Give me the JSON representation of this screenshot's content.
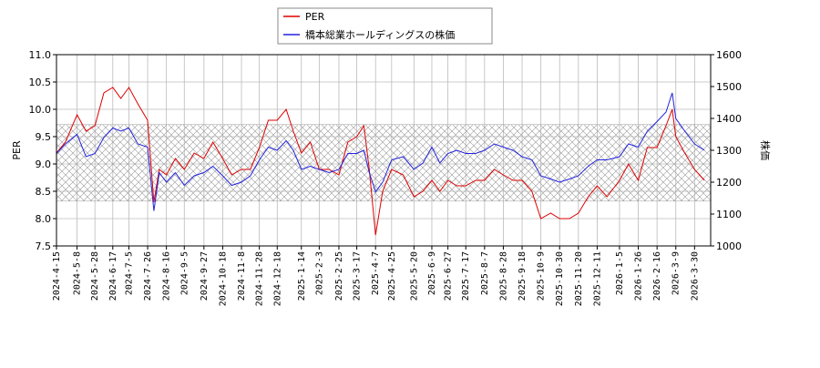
{
  "chart_data": {
    "type": "line",
    "y_label": "PER",
    "y2_label": "株価",
    "x": [
      "2024-4-15",
      "2024-4-25",
      "2024-5-8",
      "2024-5-18",
      "2024-5-28",
      "2024-6-7",
      "2024-6-17",
      "2024-6-26",
      "2024-7-5",
      "2024-7-15",
      "2024-7-26",
      "2024-8-2",
      "2024-8-8",
      "2024-8-16",
      "2024-8-26",
      "2024-9-5",
      "2024-9-16",
      "2024-9-27",
      "2024-10-7",
      "2024-10-18",
      "2024-10-28",
      "2024-11-8",
      "2024-11-18",
      "2024-11-28",
      "2024-12-8",
      "2024-12-18",
      "2024-12-28",
      "2025-1-5",
      "2025-1-14",
      "2025-1-24",
      "2025-2-3",
      "2025-2-14",
      "2025-2-25",
      "2025-3-7",
      "2025-3-17",
      "2025-3-25",
      "2025-3-31",
      "2025-4-7",
      "2025-4-15",
      "2025-4-25",
      "2025-5-8",
      "2025-5-20",
      "2025-5-30",
      "2025-6-9",
      "2025-6-18",
      "2025-6-27",
      "2025-7-7",
      "2025-7-17",
      "2025-7-28",
      "2025-8-7",
      "2025-8-18",
      "2025-8-28",
      "2025-9-8",
      "2025-9-18",
      "2025-9-29",
      "2025-10-9",
      "2025-10-20",
      "2025-10-30",
      "2025-11-10",
      "2025-11-20",
      "2025-12-1",
      "2025-12-11",
      "2025-12-22",
      "2026-1-5",
      "2026-1-15",
      "2026-1-26",
      "2026-2-5",
      "2026-2-16",
      "2026-2-26",
      "2026-3-5",
      "2026-3-9",
      "2026-3-19",
      "2026-3-30",
      "2026-4-10"
    ],
    "series": [
      {
        "name": "PER",
        "color": "#dd0000",
        "axis": "y",
        "values": [
          9.2,
          9.4,
          9.9,
          9.6,
          9.7,
          10.3,
          10.4,
          10.2,
          10.4,
          10.1,
          9.8,
          8.3,
          8.9,
          8.8,
          9.1,
          8.9,
          9.2,
          9.1,
          9.4,
          9.1,
          8.8,
          8.9,
          8.9,
          9.3,
          9.8,
          9.8,
          10.0,
          9.6,
          9.2,
          9.4,
          8.9,
          8.9,
          8.8,
          9.4,
          9.5,
          9.7,
          8.9,
          7.7,
          8.5,
          8.9,
          8.8,
          8.4,
          8.5,
          8.7,
          8.5,
          8.7,
          8.6,
          8.6,
          8.7,
          8.7,
          8.9,
          8.8,
          8.7,
          8.7,
          8.5,
          8.0,
          8.1,
          8.0,
          8.0,
          8.1,
          8.4,
          8.6,
          8.4,
          8.7,
          9.0,
          8.7,
          9.3,
          9.3,
          9.7,
          10.0,
          9.5,
          9.2,
          8.9,
          8.7
        ]
      },
      {
        "name": "橋本総業ホールディングスの株価",
        "color": "#2222dd",
        "axis": "y2",
        "values": [
          1290,
          1320,
          1350,
          1280,
          1290,
          1340,
          1370,
          1360,
          1370,
          1320,
          1310,
          1110,
          1230,
          1200,
          1230,
          1190,
          1220,
          1230,
          1250,
          1220,
          1190,
          1200,
          1220,
          1270,
          1310,
          1300,
          1330,
          1300,
          1240,
          1250,
          1240,
          1230,
          1240,
          1290,
          1290,
          1300,
          1230,
          1170,
          1200,
          1270,
          1280,
          1240,
          1260,
          1310,
          1260,
          1290,
          1300,
          1290,
          1290,
          1300,
          1320,
          1310,
          1300,
          1280,
          1270,
          1220,
          1210,
          1200,
          1210,
          1220,
          1250,
          1270,
          1270,
          1280,
          1320,
          1310,
          1360,
          1390,
          1420,
          1480,
          1400,
          1360,
          1320,
          1300
        ]
      }
    ],
    "xlim": [
      "2024-4-15",
      "2026-4-17"
    ],
    "xticks": [
      "2024-4-15",
      "2024-5-8",
      "2024-5-28",
      "2024-6-17",
      "2024-7-5",
      "2024-7-26",
      "2024-8-16",
      "2024-9-5",
      "2024-9-27",
      "2024-10-18",
      "2024-11-8",
      "2024-11-28",
      "2024-12-18",
      "2025-1-14",
      "2025-2-3",
      "2025-2-25",
      "2025-3-17",
      "2025-4-7",
      "2025-4-25",
      "2025-5-20",
      "2025-6-9",
      "2025-6-27",
      "2025-7-17",
      "2025-8-7",
      "2025-8-28",
      "2025-9-18",
      "2025-10-9",
      "2025-10-30",
      "2025-11-20",
      "2025-12-11",
      "2026-1-5",
      "2026-1-26",
      "2026-2-16",
      "2026-3-9",
      "2026-3-30"
    ],
    "ylim": [
      7.5,
      11.0
    ],
    "yticks": [
      7.5,
      {
        "value": 8,
        "label": "8.0"
      },
      8.5,
      {
        "value": 9,
        "label": "9.0"
      },
      9.5,
      {
        "value": 10,
        "label": "10.0"
      },
      10.5,
      {
        "value": 11,
        "label": "11.0"
      }
    ],
    "y2lim": [
      1000,
      1600
    ],
    "y2ticks": [
      1000,
      1100,
      1200,
      1300,
      1400,
      1500,
      1600
    ],
    "shaded_range": [
      8.32,
      9.72
    ],
    "grid": true,
    "legend": "top"
  }
}
